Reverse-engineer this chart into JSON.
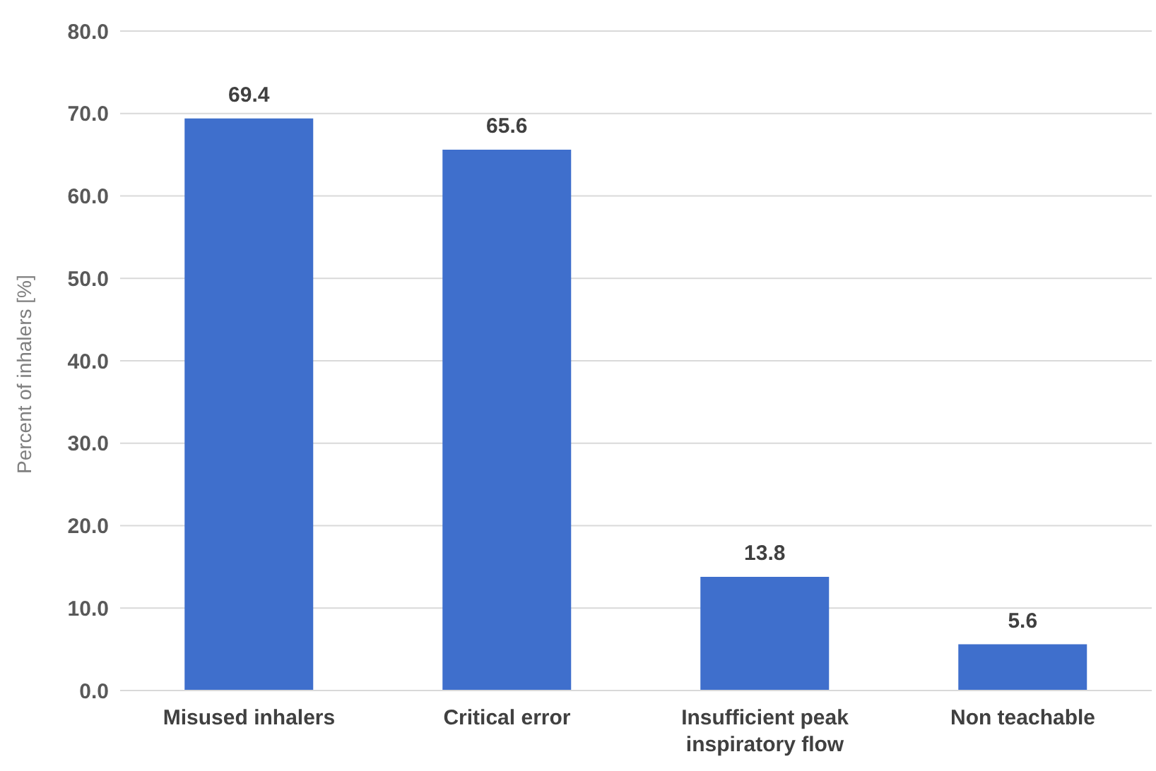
{
  "chart_data": {
    "type": "bar",
    "ylabel": "Percent of inhalers [%]",
    "categories": [
      "Misused inhalers",
      "Critical error",
      "Insufficient peak inspiratory flow",
      "Non teachable"
    ],
    "values": [
      69.4,
      65.6,
      13.8,
      5.6
    ],
    "color": "#3f6fcc",
    "ylim": [
      0,
      80
    ],
    "yticks": [
      {
        "value": 0,
        "label": "0.0"
      },
      {
        "value": 10,
        "label": "10.0"
      },
      {
        "value": 20,
        "label": "20.0"
      },
      {
        "value": 30,
        "label": "30.0"
      },
      {
        "value": 40,
        "label": "40.0"
      },
      {
        "value": 50,
        "label": "50.0"
      },
      {
        "value": 60,
        "label": "60.0"
      },
      {
        "value": 70,
        "label": "70.0"
      },
      {
        "value": 80,
        "label": "80.0"
      }
    ],
    "grid": "y",
    "data_labels": true
  }
}
